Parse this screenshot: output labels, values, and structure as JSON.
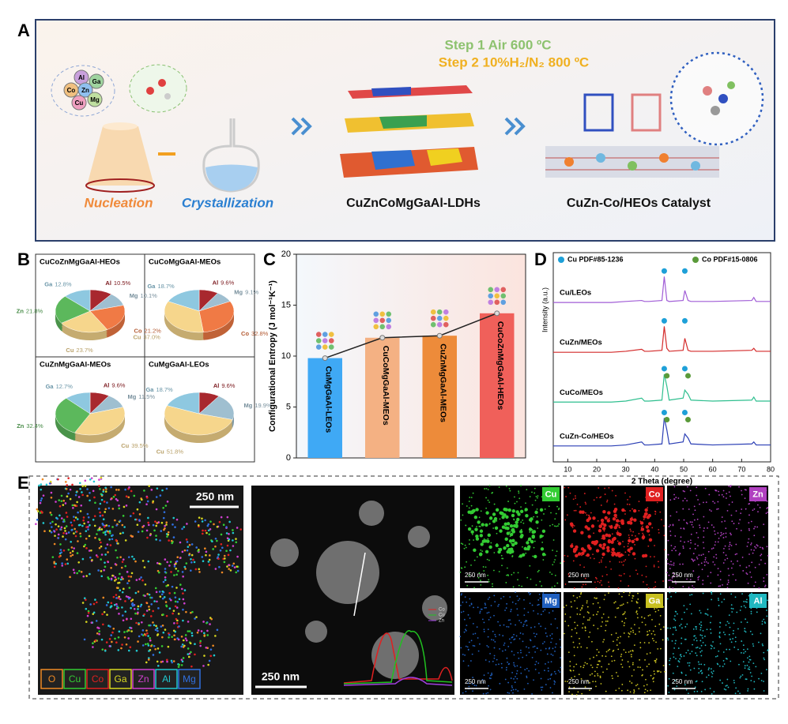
{
  "panel_labels": [
    "A",
    "B",
    "C",
    "D",
    "E"
  ],
  "panel_a": {
    "step1": "Step 1 Air 600 ºC",
    "step2": "Step 2 10%H₂/N₂ 800 ºC",
    "elements": [
      "Al",
      "Ga",
      "Co",
      "Zn",
      "Cu",
      "Mg"
    ],
    "stages": [
      "Nucleation",
      "Crystallization",
      "CuZnCoMgGaAl-LDHs",
      "CuZn-Co/HEOs Catalyst"
    ]
  },
  "chart_data": [
    {
      "type": "pie",
      "title": "CuCoZnMgGaAl-HEOs",
      "categories": [
        "Al",
        "Mg",
        "Co",
        "Cu",
        "Zn",
        "Ga"
      ],
      "values": [
        10.5,
        10.1,
        21.2,
        23.7,
        21.8,
        12.8
      ],
      "value_labels": [
        "10.5%",
        "10.1%",
        "21.2%",
        "23.7%",
        "21.8%",
        "12.8%"
      ],
      "colors": [
        "#a8282e",
        "#9fbfd0",
        "#f07a45",
        "#f6d68c",
        "#5cb85c",
        "#8ec8e0"
      ]
    },
    {
      "type": "pie",
      "title": "CuCoMgGaAl-MEOs",
      "categories": [
        "Al",
        "Mg",
        "Co",
        "Cu",
        "Ga"
      ],
      "values": [
        9.6,
        9.1,
        32.8,
        37.0,
        18.7
      ],
      "value_labels": [
        "9.6%",
        "9.1%",
        "32.8%",
        "37.0%",
        "18.7%"
      ],
      "colors": [
        "#a8282e",
        "#9fbfd0",
        "#f07a45",
        "#f6d68c",
        "#8ec8e0"
      ]
    },
    {
      "type": "pie",
      "title": "CuZnMgGaAl-MEOs",
      "categories": [
        "Al",
        "Mg",
        "Cu",
        "Zn",
        "Ga"
      ],
      "values": [
        9.6,
        11.5,
        39.5,
        32.4,
        12.7
      ],
      "value_labels": [
        "9.6%",
        "11.5%",
        "39.5%",
        "32.4%",
        "12.7%"
      ],
      "colors": [
        "#a8282e",
        "#9fbfd0",
        "#f6d68c",
        "#5cb85c",
        "#8ec8e0"
      ]
    },
    {
      "type": "pie",
      "title": "CuMgGaAl-LEOs",
      "categories": [
        "Al",
        "Mg",
        "Cu",
        "Ga"
      ],
      "values": [
        9.6,
        19.9,
        51.8,
        18.7
      ],
      "value_labels": [
        "9.6%",
        "19.9%",
        "51.8%",
        "18.7%"
      ],
      "colors": [
        "#a8282e",
        "#9fbfd0",
        "#f6d68c",
        "#8ec8e0"
      ]
    },
    {
      "type": "bar",
      "y_label": "Configurational Entropy (J mol⁻¹K⁻¹)",
      "categories": [
        "CuMgGaAl-LEOs",
        "CuCoMgGaAl-MEOs",
        "CuZnMgGaAl-MEOs",
        "CuCoZnMgGaAl-HEOs"
      ],
      "values": [
        9.8,
        11.8,
        12.0,
        14.2
      ],
      "colors": [
        "#3fa9f5",
        "#f4b183",
        "#ed8b3a",
        "#f0605a"
      ],
      "ylim": [
        0,
        20
      ],
      "yticks": [
        0,
        5,
        10,
        15,
        20
      ]
    },
    {
      "type": "line",
      "x_label": "2 Theta (degree)",
      "y_label": "Intensity (a.u.)",
      "xlim": [
        5,
        80
      ],
      "xticks": [
        10,
        20,
        30,
        40,
        50,
        60,
        70,
        80
      ],
      "ylim": [
        0,
        105
      ],
      "x": [
        5,
        25,
        30,
        35.5,
        36.5,
        38,
        42.5,
        43.3,
        44.2,
        45,
        49.8,
        50.4,
        51.5,
        52.5,
        60,
        73.5,
        74.2,
        75,
        80
      ],
      "series": [
        {
          "name": "Cu/LEOs",
          "color": "#a05cd6",
          "refs": [
            0
          ],
          "values": [
            80,
            80,
            80.5,
            81,
            80.5,
            80.5,
            81,
            93,
            81,
            80.5,
            81,
            86,
            81,
            80.5,
            80.5,
            81,
            82.5,
            80.5,
            80.5
          ]
        },
        {
          "name": "CuZn/MEOs",
          "color": "#d42a2a",
          "refs": [
            0
          ],
          "values": [
            55,
            55,
            55.5,
            56.5,
            55.5,
            55.5,
            56,
            68,
            57,
            55.5,
            56,
            62,
            56,
            55.5,
            55.5,
            56,
            57,
            55.5,
            55.5
          ]
        },
        {
          "name": "CuCo/MEOs",
          "color": "#2fbf8f",
          "refs": [
            0,
            1
          ],
          "values": [
            30,
            30,
            30.5,
            32,
            30.5,
            30.5,
            31,
            44,
            38,
            31,
            32,
            36,
            34,
            31,
            30.5,
            31,
            32.5,
            30.5,
            30.5
          ]
        },
        {
          "name": "CuZn-Co/HEOs",
          "color": "#2b3fb5",
          "refs": [
            0,
            1
          ],
          "values": [
            8,
            8,
            8.5,
            10,
            8.5,
            8.5,
            9,
            22,
            16,
            9,
            10,
            14,
            12,
            9,
            8.5,
            9,
            10,
            8.5,
            8.5
          ]
        }
      ],
      "references": [
        {
          "name": "Cu PDF#85-1236",
          "color": "#1ea0d8",
          "x": [
            43.3,
            50.4
          ]
        },
        {
          "name": "Co PDF#15-0806",
          "color": "#5a9a3a",
          "x": [
            44.2,
            51.5
          ]
        }
      ]
    }
  ],
  "panel_e": {
    "scale_bar": "250 nm",
    "overlay_legend": [
      {
        "label": "O",
        "color": "#f08a24"
      },
      {
        "label": "Cu",
        "color": "#33cc33"
      },
      {
        "label": "Co",
        "color": "#e02020"
      },
      {
        "label": "Ga",
        "color": "#d8d820"
      },
      {
        "label": "Zn",
        "color": "#d040d0"
      },
      {
        "label": "Al",
        "color": "#20c8d0"
      },
      {
        "label": "Mg",
        "color": "#3070e0"
      }
    ],
    "profile_legend": [
      "Co",
      "Cu",
      "Zn"
    ],
    "maps": [
      {
        "label": "Cu",
        "color": "#33cc33"
      },
      {
        "label": "Co",
        "color": "#e02020"
      },
      {
        "label": "Zn",
        "color": "#b040c0"
      },
      {
        "label": "Mg",
        "color": "#2060c0"
      },
      {
        "label": "Ga",
        "color": "#c8c020"
      },
      {
        "label": "Al",
        "color": "#20b8c0"
      }
    ]
  }
}
